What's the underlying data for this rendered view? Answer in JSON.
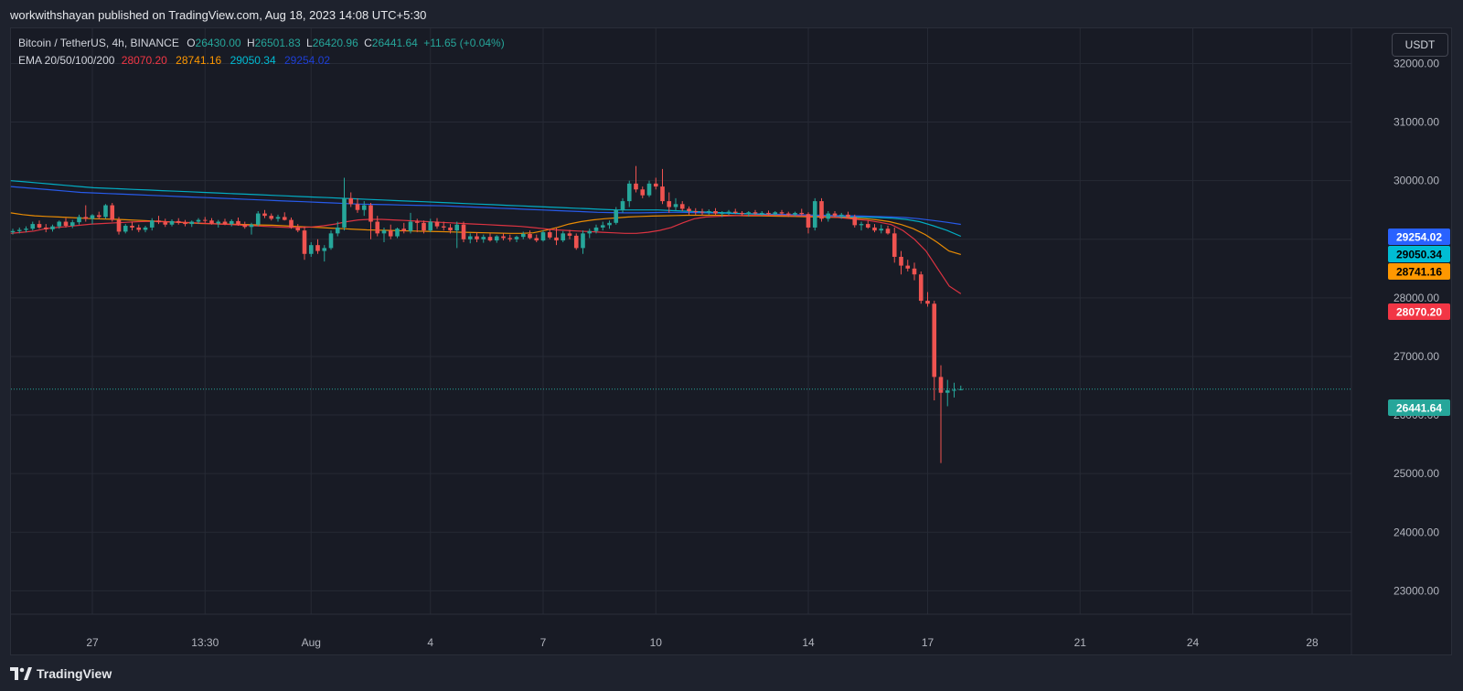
{
  "header": {
    "published_by": "workwithshayan published on TradingView.com, Aug 18, 2023 14:08 UTC+5:30"
  },
  "legend": {
    "symbol": "Bitcoin / TetherUS, 4h, BINANCE",
    "open_label": "O",
    "open": "26430.00",
    "high_label": "H",
    "high": "26501.83",
    "low_label": "L",
    "low": "26420.96",
    "close_label": "C",
    "close": "26441.64",
    "change": "+11.65 (+0.04%)",
    "ema_label": "EMA 20/50/100/200",
    "ema20": "28070.20",
    "ema50": "28741.16",
    "ema100": "29050.34",
    "ema200": "29254.02"
  },
  "currency_button": "USDT",
  "footer": {
    "brand": "TradingView"
  },
  "colors": {
    "up": "#26a69a",
    "down": "#ef5350",
    "ema20": "#f23645",
    "ema50": "#ff9800",
    "ema100": "#00bcd4",
    "ema200": "#2962ff",
    "last_price": "#26a69a"
  },
  "chart_data": {
    "type": "candlestick",
    "title": "Bitcoin / TetherUS, 4h, BINANCE",
    "timeframe": "4h",
    "ylim": [
      22600,
      32600
    ],
    "y_ticks": [
      "32000.00",
      "31000.00",
      "30000.00",
      "29000.00",
      "28000.00",
      "27000.00",
      "26000.00",
      "25000.00",
      "24000.00",
      "23000.00"
    ],
    "y_tick_values": [
      32000,
      31000,
      30000,
      29000,
      28000,
      27000,
      26000,
      25000,
      24000,
      23000
    ],
    "x_ticks": [
      {
        "label": "27",
        "bar": 12
      },
      {
        "label": "13:30",
        "bar": 29
      },
      {
        "label": "Aug",
        "bar": 45
      },
      {
        "label": "4",
        "bar": 63
      },
      {
        "label": "7",
        "bar": 80
      },
      {
        "label": "10",
        "bar": 97
      },
      {
        "label": "14",
        "bar": 120
      },
      {
        "label": "17",
        "bar": 138
      },
      {
        "label": "21",
        "bar": 161
      },
      {
        "label": "24",
        "bar": 178
      },
      {
        "label": "28",
        "bar": 196
      }
    ],
    "last_price": 26441.64,
    "price_labels": [
      {
        "name": "EMA 200",
        "value": 29254.02,
        "text": "29254.02"
      },
      {
        "name": "EMA 100",
        "value": 29050.34,
        "text": "29050.34"
      },
      {
        "name": "EMA 50",
        "value": 28741.16,
        "text": "28741.16"
      },
      {
        "name": "EMA 20",
        "value": 28070.2,
        "text": "28070.20"
      },
      {
        "name": "Last",
        "value": 26441.64,
        "text": "26441.64"
      }
    ],
    "candles": [
      [
        29120,
        29180,
        29080,
        29140
      ],
      [
        29140,
        29200,
        29100,
        29160
      ],
      [
        29160,
        29220,
        29120,
        29180
      ],
      [
        29180,
        29300,
        29150,
        29260
      ],
      [
        29260,
        29320,
        29180,
        29200
      ],
      [
        29200,
        29260,
        29120,
        29170
      ],
      [
        29170,
        29250,
        29130,
        29220
      ],
      [
        29220,
        29320,
        29180,
        29300
      ],
      [
        29300,
        29360,
        29200,
        29230
      ],
      [
        29230,
        29330,
        29190,
        29290
      ],
      [
        29290,
        29420,
        29250,
        29380
      ],
      [
        29380,
        29580,
        29300,
        29350
      ],
      [
        29350,
        29430,
        29260,
        29410
      ],
      [
        29410,
        29470,
        29340,
        29380
      ],
      [
        29380,
        29600,
        29350,
        29580
      ],
      [
        29580,
        29620,
        29300,
        29330
      ],
      [
        29330,
        29380,
        29080,
        29130
      ],
      [
        29130,
        29260,
        29100,
        29230
      ],
      [
        29230,
        29300,
        29150,
        29200
      ],
      [
        29200,
        29250,
        29120,
        29160
      ],
      [
        29160,
        29230,
        29120,
        29200
      ],
      [
        29200,
        29360,
        29150,
        29320
      ],
      [
        29320,
        29400,
        29260,
        29290
      ],
      [
        29290,
        29350,
        29210,
        29250
      ],
      [
        29250,
        29340,
        29220,
        29310
      ],
      [
        29310,
        29360,
        29250,
        29280
      ],
      [
        29280,
        29330,
        29220,
        29260
      ],
      [
        29260,
        29320,
        29210,
        29300
      ],
      [
        29300,
        29360,
        29260,
        29330
      ],
      [
        29330,
        29380,
        29280,
        29320
      ],
      [
        29320,
        29360,
        29250,
        29270
      ],
      [
        29270,
        29330,
        29200,
        29300
      ],
      [
        29300,
        29350,
        29240,
        29260
      ],
      [
        29260,
        29340,
        29220,
        29310
      ],
      [
        29310,
        29370,
        29230,
        29250
      ],
      [
        29250,
        29300,
        29180,
        29210
      ],
      [
        29210,
        29280,
        29080,
        29250
      ],
      [
        29250,
        29480,
        29220,
        29440
      ],
      [
        29440,
        29500,
        29360,
        29400
      ],
      [
        29400,
        29440,
        29320,
        29350
      ],
      [
        29350,
        29420,
        29300,
        29380
      ],
      [
        29380,
        29460,
        29320,
        29330
      ],
      [
        29330,
        29370,
        29180,
        29200
      ],
      [
        29200,
        29260,
        29120,
        29150
      ],
      [
        29150,
        29220,
        28650,
        28750
      ],
      [
        28750,
        28950,
        28700,
        28900
      ],
      [
        28900,
        29000,
        28750,
        28800
      ],
      [
        28800,
        28900,
        28620,
        28850
      ],
      [
        28850,
        29150,
        28820,
        29100
      ],
      [
        29100,
        29300,
        29050,
        29200
      ],
      [
        29200,
        30050,
        29150,
        29700
      ],
      [
        29700,
        29800,
        29550,
        29600
      ],
      [
        29600,
        29700,
        29450,
        29500
      ],
      [
        29500,
        29650,
        29400,
        29580
      ],
      [
        29580,
        29620,
        29000,
        29300
      ],
      [
        29300,
        29400,
        29050,
        29100
      ],
      [
        29100,
        29200,
        28950,
        29150
      ],
      [
        29150,
        29250,
        29000,
        29050
      ],
      [
        29050,
        29200,
        29020,
        29180
      ],
      [
        29180,
        29280,
        29100,
        29140
      ],
      [
        29140,
        29450,
        29100,
        29300
      ],
      [
        29300,
        29350,
        29120,
        29280
      ],
      [
        29280,
        29320,
        29100,
        29150
      ],
      [
        29150,
        29350,
        29120,
        29300
      ],
      [
        29300,
        29360,
        29180,
        29220
      ],
      [
        29220,
        29300,
        29150,
        29200
      ],
      [
        29200,
        29260,
        29100,
        29150
      ],
      [
        29150,
        29300,
        28850,
        29250
      ],
      [
        29250,
        29300,
        28950,
        29000
      ],
      [
        29000,
        29100,
        28930,
        29050
      ],
      [
        29050,
        29120,
        28950,
        29000
      ],
      [
        29000,
        29080,
        28940,
        29040
      ],
      [
        29040,
        29100,
        28960,
        28980
      ],
      [
        28980,
        29070,
        28940,
        29050
      ],
      [
        29050,
        29100,
        28980,
        29020
      ],
      [
        29020,
        29080,
        28960,
        29000
      ],
      [
        29000,
        29060,
        28950,
        29040
      ],
      [
        29040,
        29130,
        29000,
        29090
      ],
      [
        29090,
        29150,
        29000,
        29020
      ],
      [
        29020,
        29080,
        28950,
        28980
      ],
      [
        28980,
        29150,
        28960,
        29120
      ],
      [
        29120,
        29180,
        29000,
        29030
      ],
      [
        29030,
        29200,
        28900,
        28980
      ],
      [
        28980,
        29140,
        28950,
        29100
      ],
      [
        29100,
        29160,
        29000,
        29060
      ],
      [
        29060,
        29100,
        28820,
        28850
      ],
      [
        28850,
        29150,
        28750,
        29100
      ],
      [
        29100,
        29180,
        29020,
        29140
      ],
      [
        29140,
        29250,
        29100,
        29200
      ],
      [
        29200,
        29300,
        29150,
        29240
      ],
      [
        29240,
        29320,
        29180,
        29280
      ],
      [
        29280,
        29550,
        29250,
        29500
      ],
      [
        29500,
        29700,
        29450,
        29650
      ],
      [
        29650,
        30000,
        29550,
        29950
      ],
      [
        29950,
        30250,
        29800,
        29850
      ],
      [
        29850,
        29900,
        29700,
        29750
      ],
      [
        29750,
        30000,
        29720,
        29950
      ],
      [
        29950,
        30050,
        29850,
        29900
      ],
      [
        29900,
        30200,
        29600,
        29650
      ],
      [
        29650,
        29800,
        29450,
        29550
      ],
      [
        29550,
        29700,
        29480,
        29600
      ],
      [
        29600,
        29650,
        29480,
        29520
      ],
      [
        29520,
        29560,
        29420,
        29480
      ],
      [
        29480,
        29530,
        29420,
        29470
      ],
      [
        29470,
        29520,
        29410,
        29460
      ],
      [
        29460,
        29510,
        29420,
        29480
      ],
      [
        29480,
        29530,
        29420,
        29440
      ],
      [
        29440,
        29480,
        29380,
        29450
      ],
      [
        29450,
        29500,
        29410,
        29470
      ],
      [
        29470,
        29520,
        29430,
        29450
      ],
      [
        29450,
        29480,
        29400,
        29430
      ],
      [
        29430,
        29480,
        29390,
        29460
      ],
      [
        29460,
        29500,
        29420,
        29440
      ],
      [
        29440,
        29480,
        29400,
        29450
      ],
      [
        29450,
        29490,
        29410,
        29430
      ],
      [
        29430,
        29480,
        29400,
        29460
      ],
      [
        29460,
        29500,
        29420,
        29440
      ],
      [
        29440,
        29470,
        29380,
        29420
      ],
      [
        29420,
        29470,
        29390,
        29450
      ],
      [
        29450,
        29520,
        29410,
        29430
      ],
      [
        29430,
        29460,
        29100,
        29200
      ],
      [
        29200,
        29700,
        29150,
        29650
      ],
      [
        29650,
        29700,
        29300,
        29350
      ],
      [
        29350,
        29480,
        29300,
        29440
      ],
      [
        29440,
        29480,
        29380,
        29400
      ],
      [
        29400,
        29450,
        29350,
        29420
      ],
      [
        29420,
        29470,
        29370,
        29380
      ],
      [
        29380,
        29420,
        29200,
        29240
      ],
      [
        29240,
        29300,
        29150,
        29260
      ],
      [
        29260,
        29320,
        29180,
        29200
      ],
      [
        29200,
        29260,
        29120,
        29150
      ],
      [
        29150,
        29250,
        29100,
        29180
      ],
      [
        29180,
        29230,
        29080,
        29100
      ],
      [
        29100,
        29200,
        28600,
        28700
      ],
      [
        28700,
        28800,
        28400,
        28550
      ],
      [
        28550,
        28650,
        28450,
        28500
      ],
      [
        28500,
        28600,
        28300,
        28400
      ],
      [
        28400,
        28450,
        27900,
        27950
      ],
      [
        27950,
        28100,
        27850,
        27900
      ],
      [
        27900,
        27950,
        26250,
        26650
      ],
      [
        26650,
        26850,
        25180,
        26380
      ],
      [
        26380,
        26600,
        26150,
        26420
      ],
      [
        26420,
        26550,
        26300,
        26430
      ],
      [
        26430,
        26501.83,
        26420.96,
        26441.64
      ]
    ],
    "ema_lines": {
      "ema20": [
        29100,
        29120,
        29140,
        29180,
        29200,
        29220,
        29240,
        29260,
        29270,
        29280,
        29290,
        29300,
        29305,
        29300,
        29295,
        29290,
        29280,
        29270,
        29260,
        29250,
        29240,
        29230,
        29220,
        29210,
        29200,
        29200,
        29210,
        29230,
        29260,
        29300,
        29330,
        29340,
        29340,
        29330,
        29320,
        29310,
        29300,
        29290,
        29280,
        29270,
        29260,
        29250,
        29240,
        29230,
        29220,
        29200,
        29180,
        29160,
        29150,
        29140,
        29130,
        29120,
        29110,
        29100,
        29100,
        29120,
        29150,
        29200,
        29280,
        29350,
        29380,
        29390,
        29400,
        29405,
        29410,
        29410,
        29410,
        29405,
        29400,
        29395,
        29390,
        29380,
        29360,
        29340,
        29320,
        29290,
        29250,
        29150,
        29000,
        28800,
        28500,
        28200,
        28070.2
      ],
      "ema50": [
        29450,
        29420,
        29400,
        29390,
        29380,
        29370,
        29360,
        29350,
        29345,
        29340,
        29330,
        29320,
        29310,
        29300,
        29290,
        29280,
        29270,
        29265,
        29260,
        29255,
        29250,
        29245,
        29240,
        29230,
        29220,
        29210,
        29200,
        29190,
        29180,
        29170,
        29160,
        29155,
        29150,
        29145,
        29140,
        29135,
        29130,
        29125,
        29120,
        29115,
        29110,
        29105,
        29100,
        29100,
        29110,
        29150,
        29200,
        29260,
        29300,
        29330,
        29350,
        29365,
        29380,
        29390,
        29395,
        29400,
        29405,
        29410,
        29410,
        29410,
        29410,
        29405,
        29400,
        29398,
        29395,
        29392,
        29390,
        29385,
        29380,
        29375,
        29370,
        29360,
        29350,
        29330,
        29300,
        29250,
        29180,
        29080,
        28950,
        28800,
        28741.16
      ],
      "ema100": [
        30000,
        29980,
        29960,
        29940,
        29920,
        29900,
        29880,
        29870,
        29860,
        29850,
        29840,
        29830,
        29820,
        29810,
        29800,
        29790,
        29780,
        29770,
        29760,
        29750,
        29740,
        29730,
        29720,
        29710,
        29700,
        29690,
        29680,
        29670,
        29660,
        29650,
        29640,
        29630,
        29620,
        29610,
        29600,
        29590,
        29580,
        29570,
        29560,
        29550,
        29540,
        29530,
        29520,
        29510,
        29500,
        29500,
        29500,
        29500,
        29490,
        29480,
        29470,
        29460,
        29450,
        29440,
        29430,
        29420,
        29410,
        29400,
        29395,
        29390,
        29385,
        29380,
        29375,
        29370,
        29360,
        29340,
        29300,
        29230,
        29150,
        29050.34
      ],
      "ema200": [
        29900,
        29880,
        29860,
        29840,
        29820,
        29800,
        29790,
        29780,
        29770,
        29760,
        29750,
        29740,
        29730,
        29720,
        29710,
        29700,
        29690,
        29680,
        29670,
        29660,
        29650,
        29640,
        29630,
        29620,
        29610,
        29600,
        29595,
        29590,
        29585,
        29580,
        29575,
        29570,
        29560,
        29550,
        29540,
        29530,
        29520,
        29510,
        29500,
        29490,
        29480,
        29470,
        29460,
        29455,
        29450,
        29450,
        29455,
        29460,
        29460,
        29455,
        29450,
        29445,
        29440,
        29435,
        29430,
        29425,
        29420,
        29415,
        29410,
        29405,
        29400,
        29395,
        29390,
        29380,
        29370,
        29350,
        29320,
        29290,
        29254.02
      ]
    }
  }
}
